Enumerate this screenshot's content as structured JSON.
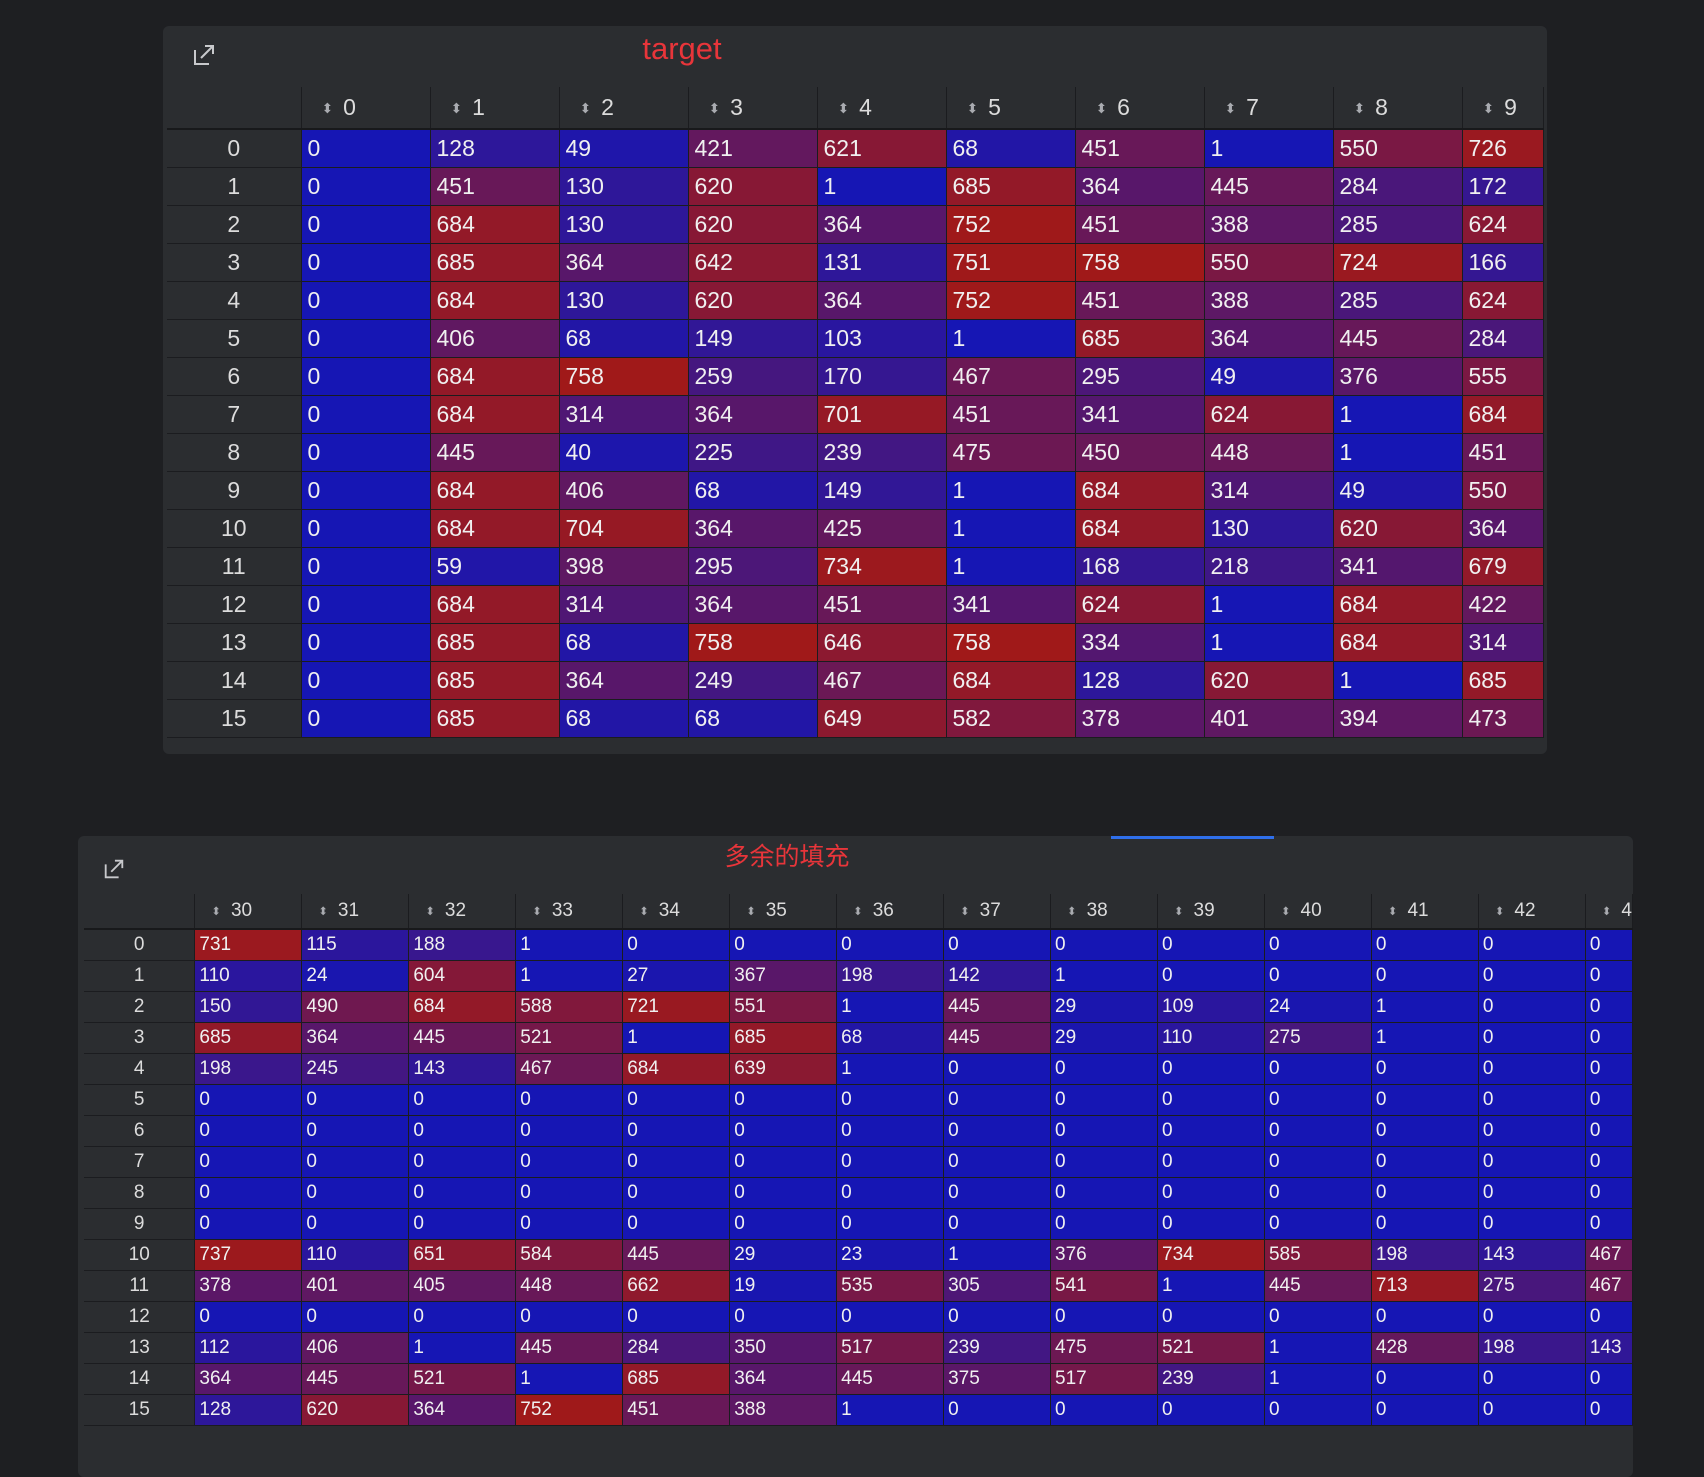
{
  "panels": [
    {
      "title": "target",
      "icon": "expand-icon",
      "columns": [
        "0",
        "1",
        "2",
        "3",
        "4",
        "5",
        "6",
        "7",
        "8",
        "9"
      ],
      "rows": [
        {
          "index": "0",
          "values": [
            0,
            128,
            49,
            421,
            621,
            68,
            451,
            1,
            550,
            726
          ]
        },
        {
          "index": "1",
          "values": [
            0,
            451,
            130,
            620,
            1,
            685,
            364,
            445,
            284,
            172
          ]
        },
        {
          "index": "2",
          "values": [
            0,
            684,
            130,
            620,
            364,
            752,
            451,
            388,
            285,
            624
          ]
        },
        {
          "index": "3",
          "values": [
            0,
            685,
            364,
            642,
            131,
            751,
            758,
            550,
            724,
            166
          ]
        },
        {
          "index": "4",
          "values": [
            0,
            684,
            130,
            620,
            364,
            752,
            451,
            388,
            285,
            624
          ]
        },
        {
          "index": "5",
          "values": [
            0,
            406,
            68,
            149,
            103,
            1,
            685,
            364,
            445,
            284
          ]
        },
        {
          "index": "6",
          "values": [
            0,
            684,
            758,
            259,
            170,
            467,
            295,
            49,
            376,
            555
          ]
        },
        {
          "index": "7",
          "values": [
            0,
            684,
            314,
            364,
            701,
            451,
            341,
            624,
            1,
            684
          ]
        },
        {
          "index": "8",
          "values": [
            0,
            445,
            40,
            225,
            239,
            475,
            450,
            448,
            1,
            451
          ]
        },
        {
          "index": "9",
          "values": [
            0,
            684,
            406,
            68,
            149,
            1,
            684,
            314,
            49,
            550
          ]
        },
        {
          "index": "10",
          "values": [
            0,
            684,
            704,
            364,
            425,
            1,
            684,
            130,
            620,
            364
          ]
        },
        {
          "index": "11",
          "values": [
            0,
            59,
            398,
            295,
            734,
            1,
            168,
            218,
            341,
            679
          ]
        },
        {
          "index": "12",
          "values": [
            0,
            684,
            314,
            364,
            451,
            341,
            624,
            1,
            684,
            422
          ]
        },
        {
          "index": "13",
          "values": [
            0,
            685,
            68,
            758,
            646,
            758,
            334,
            1,
            684,
            314
          ]
        },
        {
          "index": "14",
          "values": [
            0,
            685,
            364,
            249,
            467,
            684,
            128,
            620,
            1,
            685
          ]
        },
        {
          "index": "15",
          "values": [
            0,
            685,
            68,
            68,
            649,
            582,
            378,
            401,
            394,
            473
          ]
        }
      ]
    },
    {
      "title": "多余的填充",
      "icon": "expand-icon",
      "columns": [
        "30",
        "31",
        "32",
        "33",
        "34",
        "35",
        "36",
        "37",
        "38",
        "39",
        "40",
        "41",
        "42",
        "4"
      ],
      "rows": [
        {
          "index": "0",
          "values": [
            731,
            115,
            188,
            1,
            0,
            0,
            0,
            0,
            0,
            0,
            0,
            0,
            0,
            0
          ]
        },
        {
          "index": "1",
          "values": [
            110,
            24,
            604,
            1,
            27,
            367,
            198,
            142,
            1,
            0,
            0,
            0,
            0,
            0
          ]
        },
        {
          "index": "2",
          "values": [
            150,
            490,
            684,
            588,
            721,
            551,
            1,
            445,
            29,
            109,
            24,
            1,
            0,
            0
          ]
        },
        {
          "index": "3",
          "values": [
            685,
            364,
            445,
            521,
            1,
            685,
            68,
            445,
            29,
            110,
            275,
            1,
            0,
            0
          ]
        },
        {
          "index": "4",
          "values": [
            198,
            245,
            143,
            467,
            684,
            639,
            1,
            0,
            0,
            0,
            0,
            0,
            0,
            0
          ]
        },
        {
          "index": "5",
          "values": [
            0,
            0,
            0,
            0,
            0,
            0,
            0,
            0,
            0,
            0,
            0,
            0,
            0,
            0
          ]
        },
        {
          "index": "6",
          "values": [
            0,
            0,
            0,
            0,
            0,
            0,
            0,
            0,
            0,
            0,
            0,
            0,
            0,
            0
          ]
        },
        {
          "index": "7",
          "values": [
            0,
            0,
            0,
            0,
            0,
            0,
            0,
            0,
            0,
            0,
            0,
            0,
            0,
            0
          ]
        },
        {
          "index": "8",
          "values": [
            0,
            0,
            0,
            0,
            0,
            0,
            0,
            0,
            0,
            0,
            0,
            0,
            0,
            0
          ]
        },
        {
          "index": "9",
          "values": [
            0,
            0,
            0,
            0,
            0,
            0,
            0,
            0,
            0,
            0,
            0,
            0,
            0,
            0
          ]
        },
        {
          "index": "10",
          "values": [
            737,
            110,
            651,
            584,
            445,
            29,
            23,
            1,
            376,
            734,
            585,
            198,
            143,
            467
          ]
        },
        {
          "index": "11",
          "values": [
            378,
            401,
            405,
            448,
            662,
            19,
            535,
            305,
            541,
            1,
            445,
            713,
            275,
            467
          ]
        },
        {
          "index": "12",
          "values": [
            0,
            0,
            0,
            0,
            0,
            0,
            0,
            0,
            0,
            0,
            0,
            0,
            0,
            0
          ]
        },
        {
          "index": "13",
          "values": [
            112,
            406,
            1,
            445,
            284,
            350,
            517,
            239,
            475,
            521,
            1,
            428,
            198,
            143
          ]
        },
        {
          "index": "14",
          "values": [
            364,
            445,
            521,
            1,
            685,
            364,
            445,
            375,
            517,
            239,
            1,
            0,
            0,
            0
          ]
        },
        {
          "index": "15",
          "values": [
            128,
            620,
            364,
            752,
            451,
            388,
            1,
            0,
            0,
            0,
            0,
            0,
            0,
            0
          ]
        }
      ]
    }
  ],
  "colors": {
    "low": "#1616b4",
    "high": "#a01919",
    "title": "#e8353a",
    "panel_bg": "#2b2d30",
    "page_bg": "#1e1f22"
  },
  "color_scale": {
    "min": 0,
    "max": 758
  }
}
